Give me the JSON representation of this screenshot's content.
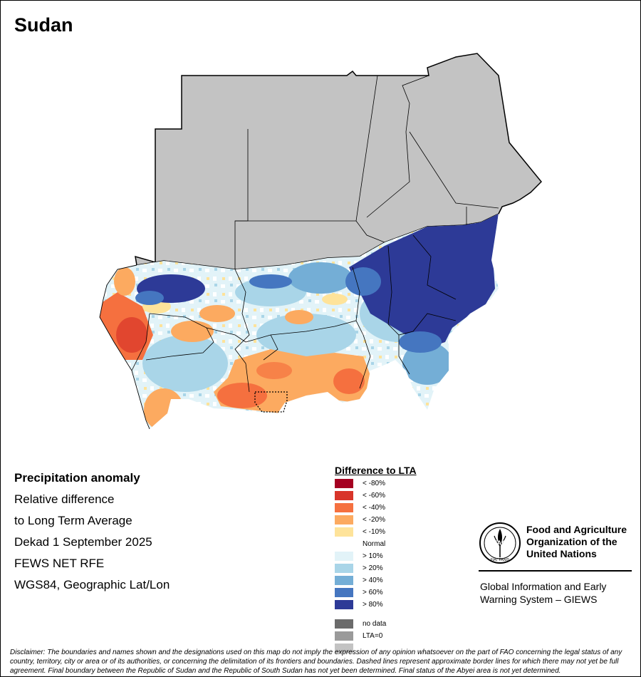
{
  "map": {
    "title": "Sudan",
    "colors": {
      "no_rain_area": "#c3c3c3",
      "border": "#000000"
    }
  },
  "info": {
    "heading": "Precipitation anomaly",
    "lines": [
      "Relative difference",
      "to Long Term Average",
      "Dekad 1 September 2025",
      "FEWS NET RFE",
      "WGS84, Geographic Lat/Lon"
    ]
  },
  "legend": {
    "title": "Difference to LTA",
    "normal_label": "Normal",
    "items": [
      {
        "label": "< -80%",
        "color": "#a50021"
      },
      {
        "label": "< -60%",
        "color": "#d8352a"
      },
      {
        "label": "< -40%",
        "color": "#f5703f"
      },
      {
        "label": "< -20%",
        "color": "#fcaa60"
      },
      {
        "label": "< -10%",
        "color": "#fee39a"
      },
      {
        "label": "> 10%",
        "color": "#e2f3f8"
      },
      {
        "label": "> 20%",
        "color": "#a9d5e8"
      },
      {
        "label": "> 40%",
        "color": "#74aed6"
      },
      {
        "label": "> 60%",
        "color": "#4576c0"
      },
      {
        "label": "> 80%",
        "color": "#2d3a97"
      },
      {
        "label": "no data",
        "color": "#6b6b6b"
      },
      {
        "label": "LTA=0",
        "color": "#9a9a9a"
      },
      {
        "label": "",
        "color": "#c3c3c3"
      }
    ]
  },
  "fao": {
    "name_lines": [
      "Food and Agriculture",
      "Organization of the",
      "United Nations"
    ],
    "logo_text": "FAO",
    "motto": "FIAT PANIS",
    "system_lines": [
      "Global Information and Early",
      "Warning System – GIEWS"
    ]
  },
  "disclaimer": "Disclaimer: The boundaries and names shown and the designations used on this map do not imply the expression of any opinion whatsoever on the part of FAO concerning the legal status of any country, territory, city or area or of its authorities, or concerning the delimitation of its frontiers and boundaries. Dashed lines represent approximate border lines for which there may not yet be full agreement. Final boundary between the Republic of Sudan and the Republic of South Sudan has not yet been determined. Final status of the Abyei area is not yet determined."
}
